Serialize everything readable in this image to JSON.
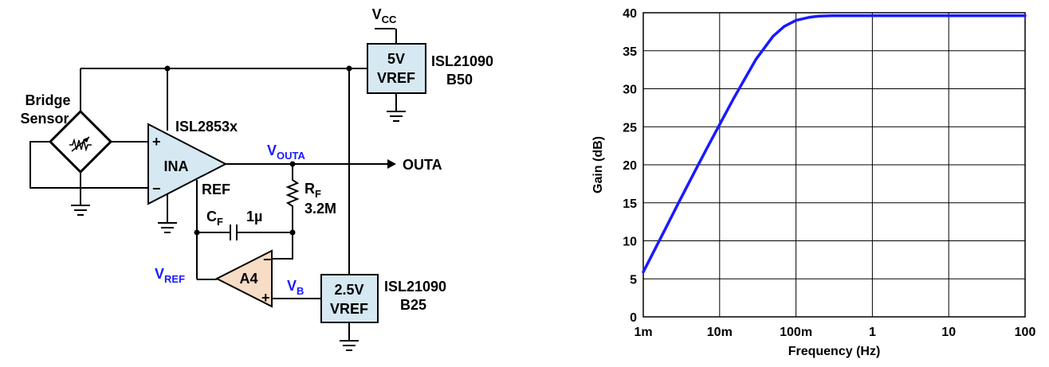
{
  "circuit": {
    "vcc": {
      "main": "V",
      "sub": "CC"
    },
    "vref5": {
      "line1": "5V",
      "line2": "VREF"
    },
    "isl_b50": {
      "line1": "ISL21090",
      "line2": "B50"
    },
    "bridge": {
      "line1": "Bridge",
      "line2": "Sensor"
    },
    "ina_part": "ISL2853x",
    "ina": "INA",
    "ina_plus": "+",
    "ina_minus": "−",
    "vouta": {
      "main": "V",
      "sub": "OUTA"
    },
    "outa": "OUTA",
    "ref": "REF",
    "rf": {
      "main": "R",
      "sub": "F",
      "value": "3.2M"
    },
    "cf": {
      "main": "C",
      "sub": "F",
      "value": "1µ"
    },
    "vref": {
      "main": "V",
      "sub": "REF"
    },
    "a4": "A4",
    "a4_minus": "−",
    "a4_plus": "+",
    "vb": {
      "main": "V",
      "sub": "B"
    },
    "vref25": {
      "line1": "2.5V",
      "line2": "VREF"
    },
    "isl_b25": {
      "line1": "ISL21090",
      "line2": "B25"
    },
    "colors": {
      "accent_text": "#1a1aff",
      "block_fill": "#d6e8f2",
      "a4_fill": "#f7dcc6"
    }
  },
  "chart_data": {
    "type": "line",
    "xlabel": "Frequency (Hz)",
    "ylabel": "Gain (dB)",
    "xscale": "log",
    "xlim": [
      0.001,
      100
    ],
    "ylim": [
      0,
      40
    ],
    "xticks": [
      "1m",
      "10m",
      "100m",
      "1",
      "10",
      "100"
    ],
    "yticks": [
      "0",
      "5",
      "10",
      "15",
      "20",
      "25",
      "30",
      "35",
      "40"
    ],
    "grid": true,
    "series": [
      {
        "color": "#1a1aff",
        "x": [
          0.001,
          0.002,
          0.003,
          0.005,
          0.007,
          0.01,
          0.015,
          0.02,
          0.03,
          0.05,
          0.07,
          0.1,
          0.15,
          0.2,
          0.3,
          0.5,
          1,
          10,
          100
        ],
        "y": [
          5.9,
          11.8,
          15.3,
          19.6,
          22.4,
          25.3,
          28.6,
          30.8,
          33.9,
          36.9,
          38.2,
          39.0,
          39.4,
          39.55,
          39.6,
          39.6,
          39.6,
          39.6,
          39.6
        ]
      }
    ]
  }
}
